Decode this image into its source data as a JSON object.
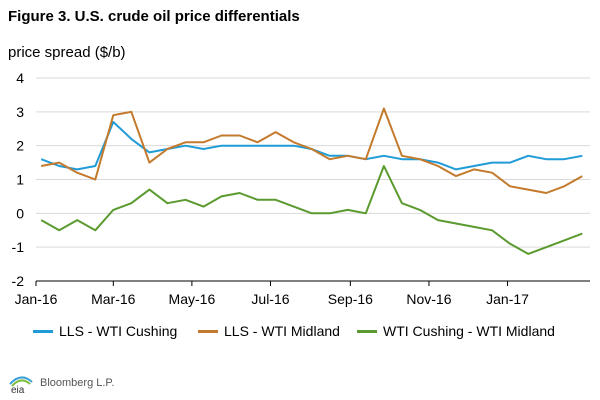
{
  "header": {
    "title": "Figure 3. U.S. crude oil price differentials",
    "ylabel": "price spread ($/b)"
  },
  "footer": {
    "logo": "eia",
    "source": "Bloomberg L.P."
  },
  "chart_data": {
    "type": "line",
    "title": "Figure 3. U.S. crude oil price differentials",
    "xlabel": "",
    "ylabel": "price spread ($/b)",
    "ylim": [
      -2,
      4
    ],
    "yticks": [
      -2,
      -1,
      0,
      1,
      2,
      3,
      4
    ],
    "xlim": [
      "2016-01-01",
      "2017-03-06"
    ],
    "xticks": [
      "2016-01-01",
      "2016-03-01",
      "2016-05-01",
      "2016-07-01",
      "2016-09-01",
      "2016-11-01",
      "2017-01-01"
    ],
    "xticklabels": [
      "Jan-16",
      "Mar-16",
      "May-16",
      "Jul-16",
      "Sep-16",
      "Nov-16",
      "Jan-17"
    ],
    "grid": "horizontal",
    "legend_position": "bottom",
    "x": [
      "2016-01-05",
      "2016-01-19",
      "2016-02-02",
      "2016-02-16",
      "2016-03-01",
      "2016-03-15",
      "2016-03-29",
      "2016-04-12",
      "2016-04-26",
      "2016-05-10",
      "2016-05-24",
      "2016-06-07",
      "2016-06-21",
      "2016-07-05",
      "2016-07-19",
      "2016-08-02",
      "2016-08-16",
      "2016-08-30",
      "2016-09-13",
      "2016-09-27",
      "2016-10-11",
      "2016-10-25",
      "2016-11-08",
      "2016-11-22",
      "2016-12-06",
      "2016-12-20",
      "2017-01-03",
      "2017-01-17",
      "2017-01-31",
      "2017-02-14",
      "2017-02-28"
    ],
    "series": [
      {
        "name": "LLS - WTI Cushing",
        "color": "#1f9bd8",
        "values": [
          1.6,
          1.4,
          1.3,
          1.4,
          2.7,
          2.2,
          1.8,
          1.9,
          2.0,
          1.9,
          2.0,
          2.0,
          2.0,
          2.0,
          2.0,
          1.9,
          1.7,
          1.7,
          1.6,
          1.7,
          1.6,
          1.6,
          1.5,
          1.3,
          1.4,
          1.5,
          1.5,
          1.7,
          1.6,
          1.6,
          1.7
        ]
      },
      {
        "name": "LLS - WTI Midland",
        "color": "#c47a2c",
        "values": [
          1.4,
          1.5,
          1.2,
          1.0,
          2.9,
          3.0,
          1.5,
          1.9,
          2.1,
          2.1,
          2.3,
          2.3,
          2.1,
          2.4,
          2.1,
          1.9,
          1.6,
          1.7,
          1.6,
          3.1,
          1.7,
          1.6,
          1.4,
          1.1,
          1.3,
          1.2,
          0.8,
          0.7,
          0.6,
          0.8,
          1.1
        ]
      },
      {
        "name": "WTI Cushing - WTI Midland",
        "color": "#5a9a2e",
        "values": [
          -0.2,
          -0.5,
          -0.2,
          -0.5,
          0.1,
          0.3,
          0.7,
          0.3,
          0.4,
          0.2,
          0.5,
          0.6,
          0.4,
          0.4,
          0.2,
          0.0,
          0.0,
          0.1,
          0.0,
          1.4,
          0.3,
          0.1,
          -0.2,
          -0.3,
          -0.4,
          -0.5,
          -0.9,
          -1.2,
          -1.0,
          -0.8,
          -0.6
        ]
      }
    ]
  }
}
